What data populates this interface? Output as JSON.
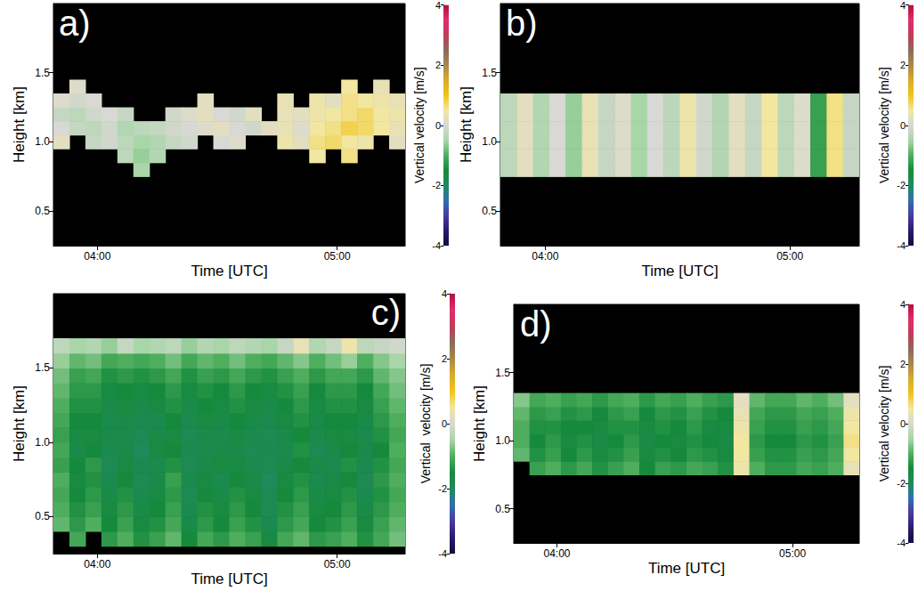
{
  "chart_data": [
    {
      "type": "heatmap",
      "title": "a)",
      "x_label": "Time [UTC]",
      "y_label": "Height [km]",
      "grid": false,
      "xlim": [
        229,
        317
      ],
      "xticks": [
        {
          "value": 240,
          "label": "04:00"
        },
        {
          "value": 300,
          "label": "05:00"
        }
      ],
      "ylim": [
        0.25,
        2.0
      ],
      "yticks": [
        {
          "value": 0.5,
          "label": "0.5"
        },
        {
          "value": 1,
          "label": "1.0"
        },
        {
          "value": 1.5,
          "label": "1.5"
        }
      ],
      "x": [
        231,
        235,
        239,
        243,
        247,
        251,
        255,
        259,
        263,
        267,
        271,
        275,
        279,
        283,
        287,
        291,
        295,
        299,
        303,
        307,
        311,
        315
      ],
      "y": [
        0.8,
        0.9,
        1.0,
        1.1,
        1.2,
        1.3,
        1.4
      ],
      "values": [
        [
          null,
          null,
          null,
          null,
          null,
          -0.5,
          null,
          null,
          null,
          null,
          null,
          null,
          null,
          null,
          null,
          null,
          null,
          null,
          null,
          null,
          null,
          null
        ],
        [
          null,
          null,
          null,
          null,
          -0.3,
          -0.6,
          -0.4,
          null,
          null,
          null,
          null,
          null,
          null,
          null,
          null,
          null,
          0.5,
          null,
          0.6,
          null,
          null,
          null
        ],
        [
          0.2,
          null,
          -0.2,
          -0.1,
          -0.3,
          -0.5,
          -0.4,
          -0.2,
          -0.1,
          null,
          0.0,
          0.1,
          null,
          null,
          0.4,
          0.2,
          0.6,
          0.7,
          0.5,
          0.4,
          null,
          0.2
        ],
        [
          0.0,
          -0.2,
          -0.3,
          -0.1,
          -0.4,
          -0.3,
          -0.2,
          -0.1,
          0.0,
          0.1,
          0.2,
          0.0,
          -0.1,
          0.2,
          0.3,
          0.1,
          0.5,
          0.6,
          0.8,
          0.7,
          0.5,
          0.3
        ],
        [
          -0.2,
          -0.3,
          -0.1,
          0.0,
          -0.2,
          null,
          null,
          -0.1,
          0.1,
          0.2,
          0.0,
          -0.1,
          0.2,
          null,
          0.3,
          0.2,
          0.4,
          0.5,
          0.6,
          0.7,
          0.5,
          0.4
        ],
        [
          0.1,
          -0.1,
          0.0,
          null,
          null,
          null,
          null,
          null,
          null,
          0.2,
          null,
          null,
          null,
          null,
          0.3,
          null,
          0.4,
          0.2,
          0.6,
          0.5,
          0.4,
          0.3
        ],
        [
          null,
          0.1,
          null,
          null,
          null,
          null,
          null,
          null,
          null,
          null,
          null,
          null,
          null,
          null,
          null,
          null,
          null,
          null,
          0.5,
          null,
          0.3,
          null
        ]
      ],
      "colorbar": {
        "label": "Vertical velocity [m/s]",
        "range": [
          -4,
          4
        ],
        "ticks": [
          -4,
          -2,
          0,
          2,
          4
        ]
      }
    },
    {
      "type": "heatmap",
      "title": "b)",
      "x_label": "Time [UTC]",
      "y_label": "Height [km]",
      "grid": false,
      "xlim": [
        229,
        317
      ],
      "xticks": [
        {
          "value": 240,
          "label": "04:00"
        },
        {
          "value": 300,
          "label": "05:00"
        }
      ],
      "ylim": [
        0.25,
        2.0
      ],
      "yticks": [
        {
          "value": 0.5,
          "label": "0.5"
        },
        {
          "value": 1,
          "label": "1.0"
        },
        {
          "value": 1.5,
          "label": "1.5"
        }
      ],
      "x": [
        231,
        235,
        239,
        243,
        247,
        251,
        255,
        259,
        263,
        267,
        271,
        275,
        279,
        283,
        287,
        291,
        295,
        299,
        303,
        307,
        311,
        315
      ],
      "y": [
        0.8,
        0.9,
        1.0,
        1.1,
        1.2,
        1.3
      ],
      "values": [
        [
          -0.3,
          0.2,
          -0.4,
          0.0,
          -0.6,
          0.3,
          -0.2,
          0.1,
          -0.5,
          0.0,
          -0.3,
          0.4,
          -0.1,
          -0.4,
          0.2,
          -0.2,
          0.5,
          -0.3,
          0.1,
          -1.2,
          0.6,
          -0.2
        ],
        [
          -0.3,
          0.2,
          -0.4,
          0.0,
          -0.6,
          0.3,
          -0.2,
          0.1,
          -0.5,
          0.0,
          -0.3,
          0.4,
          -0.1,
          -0.4,
          0.2,
          -0.2,
          0.5,
          -0.3,
          0.1,
          -1.2,
          0.6,
          -0.2
        ],
        [
          -0.3,
          0.2,
          -0.4,
          0.0,
          -0.6,
          0.3,
          -0.2,
          0.1,
          -0.5,
          0.0,
          -0.3,
          0.4,
          -0.1,
          -0.4,
          0.2,
          -0.2,
          0.5,
          -0.3,
          0.1,
          -1.2,
          0.6,
          -0.2
        ],
        [
          -0.3,
          0.2,
          -0.4,
          0.0,
          -0.6,
          0.3,
          -0.2,
          0.1,
          -0.5,
          0.0,
          -0.3,
          0.4,
          -0.1,
          -0.4,
          0.2,
          -0.2,
          0.5,
          -0.3,
          0.1,
          -1.2,
          0.6,
          -0.2
        ],
        [
          -0.3,
          0.2,
          -0.4,
          0.0,
          -0.6,
          0.3,
          -0.2,
          0.1,
          -0.5,
          0.0,
          -0.3,
          0.4,
          -0.1,
          -0.4,
          0.2,
          -0.2,
          0.5,
          -0.3,
          0.1,
          -1.2,
          0.6,
          -0.2
        ],
        [
          -0.3,
          0.2,
          -0.4,
          0.0,
          -0.6,
          0.3,
          -0.2,
          0.1,
          -0.5,
          0.0,
          -0.3,
          0.4,
          -0.1,
          -0.4,
          0.2,
          -0.2,
          0.5,
          -0.3,
          0.1,
          -1.2,
          0.6,
          -0.2
        ]
      ],
      "colorbar": {
        "label": "Vertical velocity [m/s]",
        "range": [
          -4,
          4
        ],
        "ticks": [
          -4,
          -2,
          0,
          2,
          4
        ]
      }
    },
    {
      "type": "heatmap",
      "title": "c)",
      "x_label": "Time [UTC]",
      "y_label": "Height [km]",
      "grid": false,
      "xlim": [
        229,
        317
      ],
      "xticks": [
        {
          "value": 240,
          "label": "04:00"
        },
        {
          "value": 300,
          "label": "05:00"
        }
      ],
      "ylim": [
        0.25,
        2.0
      ],
      "yticks": [
        {
          "value": 0.5,
          "label": "0.5"
        },
        {
          "value": 1,
          "label": "1.0"
        },
        {
          "value": 1.5,
          "label": "1.5"
        }
      ],
      "x": [
        231,
        235,
        239,
        243,
        247,
        251,
        255,
        259,
        263,
        267,
        271,
        275,
        279,
        283,
        287,
        291,
        295,
        299,
        303,
        307,
        311,
        315
      ],
      "y": [
        0.35,
        0.45,
        0.55,
        0.65,
        0.75,
        0.85,
        0.95,
        1.05,
        1.15,
        1.25,
        1.35,
        1.45,
        1.55,
        1.65
      ],
      "values": [
        [
          null,
          -1.1,
          null,
          -1.3,
          -1.0,
          -1.4,
          -1.2,
          -0.9,
          -1.5,
          -1.1,
          -1.3,
          -1.0,
          -1.2,
          -1.6,
          -1.1,
          -0.9,
          -1.3,
          -1.2,
          -1.0,
          -1.4,
          -1.1,
          -0.8
        ],
        [
          -0.9,
          -1.3,
          -1.0,
          -1.5,
          -1.2,
          -1.6,
          -1.4,
          -1.1,
          -1.7,
          -1.3,
          -1.5,
          -1.2,
          -1.4,
          -1.8,
          -1.3,
          -1.1,
          -1.5,
          -1.4,
          -1.2,
          -1.6,
          -1.2,
          -0.9
        ],
        [
          -1.0,
          -1.4,
          -1.2,
          -1.6,
          -1.3,
          -1.7,
          -1.5,
          -1.2,
          -1.8,
          -1.4,
          -1.6,
          -1.3,
          -1.5,
          -1.9,
          -1.4,
          -1.2,
          -1.6,
          -1.5,
          -1.3,
          -1.7,
          -1.3,
          -1.0
        ],
        [
          -1.1,
          -1.5,
          -1.3,
          -1.7,
          -1.4,
          -1.8,
          -1.6,
          -1.3,
          -1.9,
          -1.5,
          -1.7,
          -1.4,
          -1.6,
          -1.9,
          -1.5,
          -1.3,
          -1.7,
          -1.6,
          -1.4,
          -1.8,
          -1.4,
          -1.1
        ],
        [
          -1.0,
          -1.6,
          -1.4,
          -1.8,
          -1.5,
          -1.9,
          -1.7,
          -1.2,
          -1.8,
          -1.6,
          -1.8,
          -1.5,
          -1.7,
          -2.0,
          -1.6,
          -1.4,
          -1.8,
          -1.7,
          -1.5,
          -1.9,
          -1.3,
          -1.0
        ],
        [
          -1.2,
          -1.5,
          -1.3,
          -1.9,
          -1.6,
          -1.8,
          -1.8,
          -1.4,
          -1.9,
          -1.7,
          -1.6,
          -1.6,
          -1.8,
          -1.9,
          -1.7,
          -1.5,
          -1.7,
          -1.8,
          -1.4,
          -1.8,
          -1.4,
          -1.1
        ],
        [
          -1.1,
          -1.7,
          -1.5,
          -1.8,
          -1.7,
          -2.0,
          -1.6,
          -1.5,
          -1.8,
          -1.8,
          -1.7,
          -1.7,
          -1.9,
          -1.8,
          -1.8,
          -1.4,
          -1.9,
          -1.7,
          -1.5,
          -1.7,
          -1.5,
          -1.0
        ],
        [
          -1.2,
          -1.6,
          -1.6,
          -1.7,
          -1.8,
          -1.9,
          -1.7,
          -1.6,
          -1.9,
          -1.7,
          -1.8,
          -1.6,
          -1.8,
          -1.9,
          -1.7,
          -1.5,
          -1.8,
          -1.6,
          -1.6,
          -1.8,
          -1.4,
          -1.1
        ],
        [
          -1.1,
          -1.5,
          -1.5,
          -1.8,
          -1.7,
          -1.8,
          -1.8,
          -1.5,
          -1.8,
          -1.6,
          -1.7,
          -1.5,
          -1.7,
          -1.8,
          -1.6,
          -1.4,
          -1.7,
          -1.5,
          -1.5,
          -1.7,
          -1.3,
          -1.0
        ],
        [
          -1.0,
          -1.4,
          -1.4,
          -1.7,
          -1.6,
          -1.7,
          -1.6,
          -1.4,
          -1.7,
          -1.5,
          -1.6,
          -1.4,
          -1.6,
          -1.7,
          -1.5,
          -1.3,
          -1.6,
          -1.4,
          -1.4,
          -1.6,
          -1.2,
          -0.9
        ],
        [
          -0.9,
          -1.3,
          -1.3,
          -1.6,
          -1.5,
          -1.6,
          -1.5,
          -1.3,
          -1.6,
          -1.4,
          -1.5,
          -1.3,
          -1.5,
          -1.6,
          -1.4,
          -1.2,
          -1.5,
          -1.3,
          -1.3,
          -1.5,
          -1.1,
          -0.8
        ],
        [
          -0.8,
          -1.2,
          -1.1,
          -1.4,
          -1.3,
          -1.4,
          -1.3,
          -1.1,
          -1.4,
          -1.2,
          -1.3,
          -1.1,
          -1.3,
          -1.4,
          -1.2,
          -1.0,
          -1.3,
          -1.1,
          -1.1,
          -1.3,
          -0.9,
          -0.7
        ],
        [
          -0.6,
          -0.9,
          -0.8,
          -1.1,
          -1.0,
          -1.1,
          -1.0,
          -0.8,
          -1.1,
          -0.9,
          -1.0,
          -0.8,
          -1.0,
          -1.1,
          -0.9,
          -0.7,
          -1.0,
          -0.8,
          -0.6,
          -1.0,
          -0.7,
          -0.5
        ],
        [
          -0.3,
          -0.5,
          -0.4,
          -0.6,
          -0.2,
          -0.5,
          -0.4,
          -0.3,
          -0.6,
          -0.4,
          -0.5,
          -0.3,
          -0.4,
          -0.5,
          -0.2,
          0.3,
          -0.4,
          -0.2,
          0.4,
          -0.3,
          -0.2,
          -0.1
        ]
      ],
      "colorbar": {
        "label": "Vertical  velocity [m/s]",
        "range": [
          -4,
          4
        ],
        "ticks": [
          -4,
          -2,
          0,
          2,
          4
        ]
      }
    },
    {
      "type": "heatmap",
      "title": "d)",
      "x_label": "Time [UTC]",
      "y_label": "Height [km]",
      "grid": false,
      "xlim": [
        229,
        317
      ],
      "xticks": [
        {
          "value": 240,
          "label": "04:00"
        },
        {
          "value": 300,
          "label": "05:00"
        }
      ],
      "ylim": [
        0.25,
        2.0
      ],
      "yticks": [
        {
          "value": 0.5,
          "label": "0.5"
        },
        {
          "value": 1,
          "label": "1.0"
        },
        {
          "value": 1.5,
          "label": "1.5"
        }
      ],
      "x": [
        231,
        235,
        239,
        243,
        247,
        251,
        255,
        259,
        263,
        267,
        271,
        275,
        279,
        283,
        287,
        291,
        295,
        299,
        303,
        307,
        311,
        315
      ],
      "y": [
        0.8,
        0.9,
        1.0,
        1.1,
        1.2,
        1.3
      ],
      "values": [
        [
          null,
          -1.2,
          -1.0,
          -1.3,
          -1.1,
          -1.4,
          -1.2,
          -1.0,
          -1.5,
          -1.2,
          -1.3,
          -1.1,
          -1.2,
          -1.4,
          0.4,
          -1.0,
          -1.3,
          -1.3,
          -1.1,
          -1.2,
          -1.0,
          0.3
        ],
        [
          -0.9,
          -1.4,
          -1.2,
          -1.5,
          -1.3,
          -1.6,
          -1.4,
          -1.2,
          -1.6,
          -1.4,
          -1.5,
          -1.3,
          -1.4,
          -1.6,
          0.5,
          -1.2,
          -1.4,
          -1.4,
          -1.2,
          -1.3,
          -1.1,
          0.5
        ],
        [
          -1.0,
          -1.5,
          -1.3,
          -1.6,
          -1.4,
          -1.7,
          -1.5,
          -1.3,
          -1.7,
          -1.5,
          -1.6,
          -1.4,
          -1.5,
          -1.7,
          0.5,
          -1.3,
          -1.5,
          -1.5,
          -1.3,
          -1.4,
          -1.2,
          0.6
        ],
        [
          -1.0,
          -1.4,
          -1.4,
          -1.5,
          -1.5,
          -1.6,
          -1.4,
          -1.4,
          -1.6,
          -1.4,
          -1.5,
          -1.3,
          -1.6,
          -1.6,
          0.4,
          -1.2,
          -1.4,
          -1.4,
          -1.2,
          -1.3,
          -1.1,
          0.5
        ],
        [
          -0.9,
          -1.3,
          -1.2,
          -1.4,
          -1.3,
          -1.5,
          -1.3,
          -1.2,
          -1.5,
          -1.3,
          -1.4,
          -1.2,
          -1.4,
          -1.5,
          0.3,
          -1.1,
          -1.3,
          -1.3,
          -1.1,
          -1.2,
          -1.0,
          0.4
        ],
        [
          -0.7,
          -1.1,
          -1.0,
          -1.2,
          -1.1,
          -1.3,
          -1.1,
          -1.0,
          -1.3,
          -1.1,
          -1.2,
          -1.0,
          -1.2,
          -1.3,
          0.2,
          -0.9,
          -1.1,
          -1.1,
          -0.9,
          -1.0,
          -0.8,
          0.2
        ]
      ],
      "colorbar": {
        "label": "Vertical velocity [m/s]",
        "range": [
          -4,
          4
        ],
        "ticks": [
          -4,
          -2,
          0,
          2,
          4
        ]
      }
    }
  ]
}
